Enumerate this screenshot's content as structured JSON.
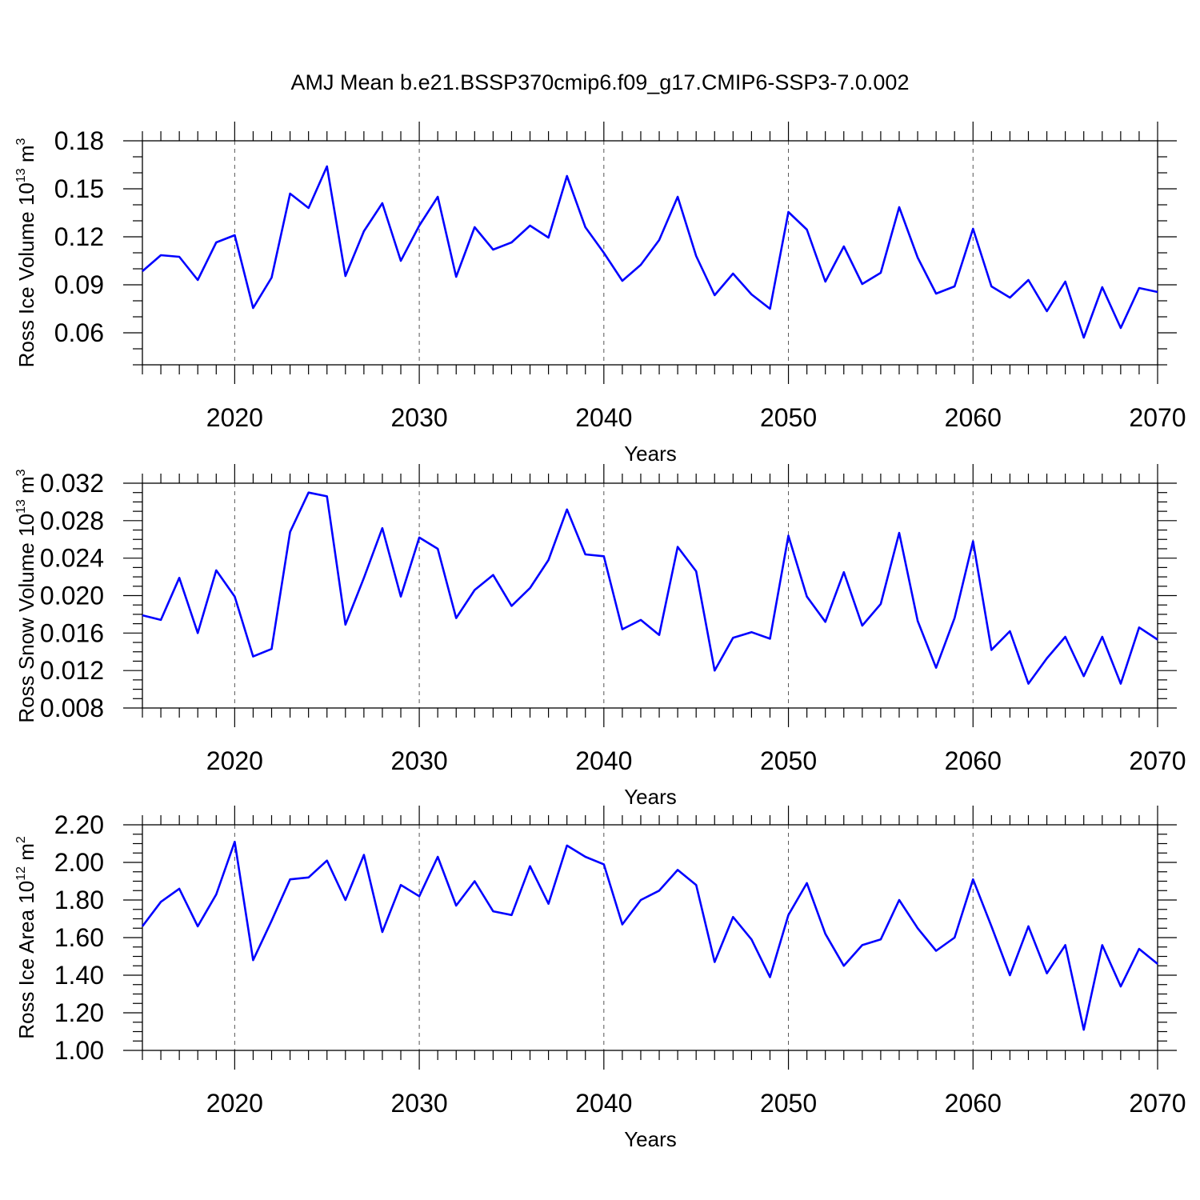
{
  "title": "AMJ Mean b.e21.BSSP370cmip6.f09_g17.CMIP6-SSP3-7.0.002",
  "colors": {
    "series": "#0000ff",
    "axes": "#000000",
    "background": "#ffffff"
  },
  "chart_data": [
    {
      "type": "line",
      "ylabel": "Ross Ice Volume 10",
      "ylabel_exp": "13",
      "ylabel_unit": " m",
      "ylabel_unit_exp": "3",
      "xlabel": "Years",
      "xlim": [
        2015,
        2070
      ],
      "ylim": [
        0.04,
        0.18
      ],
      "yticks": [
        "0.06",
        "0.09",
        "0.12",
        "0.15",
        "0.18"
      ],
      "ytick_values": [
        0.06,
        0.09,
        0.12,
        0.15,
        0.18
      ],
      "yminor_step": 0.01,
      "xticks": [
        "2020",
        "2030",
        "2040",
        "2050",
        "2060",
        "2070"
      ],
      "xtick_values": [
        2020,
        2030,
        2040,
        2050,
        2060,
        2070
      ],
      "grid": "dashed vertical at major x ticks",
      "x": [
        2015,
        2016,
        2017,
        2018,
        2019,
        2020,
        2021,
        2022,
        2023,
        2024,
        2025,
        2026,
        2027,
        2028,
        2029,
        2030,
        2031,
        2032,
        2033,
        2034,
        2035,
        2036,
        2037,
        2038,
        2039,
        2040,
        2041,
        2042,
        2043,
        2044,
        2045,
        2046,
        2047,
        2048,
        2049,
        2050,
        2051,
        2052,
        2053,
        2054,
        2055,
        2056,
        2057,
        2058,
        2059,
        2060,
        2061,
        2062,
        2063,
        2064,
        2065,
        2066,
        2067,
        2068,
        2069,
        2070
      ],
      "values": [
        0.0985,
        0.1085,
        0.1075,
        0.093,
        0.1165,
        0.121,
        0.0755,
        0.0945,
        0.147,
        0.138,
        0.164,
        0.0955,
        0.1235,
        0.141,
        0.105,
        0.127,
        0.145,
        0.095,
        0.126,
        0.112,
        0.1165,
        0.127,
        0.1195,
        0.158,
        0.126,
        0.11,
        0.0925,
        0.1025,
        0.118,
        0.145,
        0.108,
        0.0835,
        0.097,
        0.084,
        0.075,
        0.1355,
        0.1245,
        0.092,
        0.114,
        0.0905,
        0.0975,
        0.1385,
        0.107,
        0.0845,
        0.089,
        0.125,
        0.089,
        0.082,
        0.093,
        0.0735,
        0.092,
        0.057,
        0.0885,
        0.063,
        0.088,
        0.0855
      ]
    },
    {
      "type": "line",
      "ylabel": "Ross Snow Volume 10",
      "ylabel_exp": "13",
      "ylabel_unit": " m",
      "ylabel_unit_exp": "3",
      "xlabel": "Years",
      "xlim": [
        2015,
        2070
      ],
      "ylim": [
        0.008,
        0.032
      ],
      "yticks": [
        "0.008",
        "0.012",
        "0.016",
        "0.020",
        "0.024",
        "0.028",
        "0.032"
      ],
      "ytick_values": [
        0.008,
        0.012,
        0.016,
        0.02,
        0.024,
        0.028,
        0.032
      ],
      "yminor_step": 0.001,
      "xticks": [
        "2020",
        "2030",
        "2040",
        "2050",
        "2060",
        "2070"
      ],
      "xtick_values": [
        2020,
        2030,
        2040,
        2050,
        2060,
        2070
      ],
      "grid": "dashed vertical at major x ticks",
      "x": [
        2015,
        2016,
        2017,
        2018,
        2019,
        2020,
        2021,
        2022,
        2023,
        2024,
        2025,
        2026,
        2027,
        2028,
        2029,
        2030,
        2031,
        2032,
        2033,
        2034,
        2035,
        2036,
        2037,
        2038,
        2039,
        2040,
        2041,
        2042,
        2043,
        2044,
        2045,
        2046,
        2047,
        2048,
        2049,
        2050,
        2051,
        2052,
        2053,
        2054,
        2055,
        2056,
        2057,
        2058,
        2059,
        2060,
        2061,
        2062,
        2063,
        2064,
        2065,
        2066,
        2067,
        2068,
        2069,
        2070
      ],
      "values": [
        0.0179,
        0.0174,
        0.0219,
        0.016,
        0.0227,
        0.0199,
        0.0135,
        0.0143,
        0.0268,
        0.031,
        0.0306,
        0.0169,
        0.0219,
        0.0272,
        0.0199,
        0.0262,
        0.025,
        0.0176,
        0.0206,
        0.0222,
        0.0189,
        0.0208,
        0.0238,
        0.0292,
        0.0244,
        0.0242,
        0.0164,
        0.0174,
        0.0158,
        0.0252,
        0.0226,
        0.012,
        0.0155,
        0.0161,
        0.0154,
        0.0264,
        0.0199,
        0.0172,
        0.0225,
        0.0168,
        0.0191,
        0.0267,
        0.0173,
        0.0123,
        0.0176,
        0.0258,
        0.0142,
        0.0162,
        0.0106,
        0.0133,
        0.0156,
        0.0114,
        0.0156,
        0.0106,
        0.0166,
        0.0153
      ]
    },
    {
      "type": "line",
      "ylabel": "Ross Ice Area 10",
      "ylabel_exp": "12",
      "ylabel_unit": " m",
      "ylabel_unit_exp": "2",
      "xlabel": "Years",
      "xlim": [
        2015,
        2070
      ],
      "ylim": [
        1.0,
        2.2
      ],
      "yticks": [
        "1.00",
        "1.20",
        "1.40",
        "1.60",
        "1.80",
        "2.00",
        "2.20"
      ],
      "ytick_values": [
        1.0,
        1.2,
        1.4,
        1.6,
        1.8,
        2.0,
        2.2
      ],
      "yminor_step": 0.05,
      "xticks": [
        "2020",
        "2030",
        "2040",
        "2050",
        "2060",
        "2070"
      ],
      "xtick_values": [
        2020,
        2030,
        2040,
        2050,
        2060,
        2070
      ],
      "grid": "dashed vertical at major x ticks",
      "x": [
        2015,
        2016,
        2017,
        2018,
        2019,
        2020,
        2021,
        2022,
        2023,
        2024,
        2025,
        2026,
        2027,
        2028,
        2029,
        2030,
        2031,
        2032,
        2033,
        2034,
        2035,
        2036,
        2037,
        2038,
        2039,
        2040,
        2041,
        2042,
        2043,
        2044,
        2045,
        2046,
        2047,
        2048,
        2049,
        2050,
        2051,
        2052,
        2053,
        2054,
        2055,
        2056,
        2057,
        2058,
        2059,
        2060,
        2061,
        2062,
        2063,
        2064,
        2065,
        2066,
        2067,
        2068,
        2069,
        2070
      ],
      "values": [
        1.66,
        1.79,
        1.86,
        1.66,
        1.83,
        2.11,
        1.48,
        1.69,
        1.91,
        1.92,
        2.01,
        1.8,
        2.04,
        1.63,
        1.88,
        1.82,
        2.03,
        1.77,
        1.9,
        1.74,
        1.72,
        1.98,
        1.78,
        2.09,
        2.03,
        1.99,
        1.67,
        1.8,
        1.85,
        1.96,
        1.88,
        1.47,
        1.71,
        1.59,
        1.39,
        1.72,
        1.89,
        1.62,
        1.45,
        1.56,
        1.59,
        1.8,
        1.65,
        1.53,
        1.6,
        1.91,
        1.66,
        1.4,
        1.66,
        1.41,
        1.56,
        1.11,
        1.56,
        1.34,
        1.54,
        1.46
      ]
    }
  ]
}
